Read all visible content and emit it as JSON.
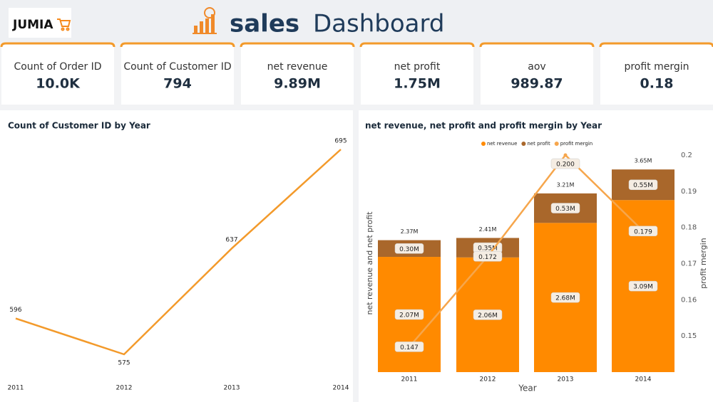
{
  "header": {
    "logo": "JUMIA",
    "title_bold": "sales",
    "title_rest": "Dashboard"
  },
  "kpis": [
    {
      "label": "Count of Order ID",
      "value": "10.0K"
    },
    {
      "label": "Count of Customer ID",
      "value": "794"
    },
    {
      "label": "net revenue",
      "value": "9.89M"
    },
    {
      "label": "net profit",
      "value": "1.75M"
    },
    {
      "label": "aov",
      "value": "989.87"
    },
    {
      "label": "profit mergin",
      "value": "0.18"
    }
  ],
  "chart_data": [
    {
      "type": "line",
      "title": "Count of Customer ID by Year",
      "categories": [
        "2011",
        "2012",
        "2013",
        "2014"
      ],
      "values": [
        596,
        575,
        637,
        695
      ],
      "color": "#f39a2b"
    },
    {
      "type": "combo",
      "title": "net revenue, net profit and profit mergin by Year",
      "categories": [
        "2011",
        "2012",
        "2013",
        "2014"
      ],
      "xlabel": "Year",
      "ylabel": "net revenue and net profit",
      "y2label": "profit mergin",
      "ylim": [
        0,
        4000000
      ],
      "y2lim": [
        0.14,
        0.2
      ],
      "y2ticks": [
        0.15,
        0.16,
        0.17,
        0.18,
        0.19,
        0.2
      ],
      "total_labels": [
        "2.37M",
        "2.41M",
        "3.21M",
        "3.65M"
      ],
      "series": [
        {
          "name": "net revenue",
          "color": "#ff8a00",
          "values": [
            2070000,
            2060000,
            2680000,
            3090000
          ],
          "value_labels": [
            "2.07M",
            "2.06M",
            "2.68M",
            "3.09M"
          ]
        },
        {
          "name": "net profit",
          "color": "#a9672b",
          "values": [
            300000,
            350000,
            530000,
            550000
          ],
          "value_labels": [
            "0.30M",
            "0.35M",
            "0.53M",
            "0.55M"
          ]
        },
        {
          "name": "profit mergin",
          "color": "#f6a64c",
          "axis": "y2",
          "values": [
            0.147,
            0.172,
            0.2,
            0.179
          ],
          "value_labels": [
            "0.147",
            "0.172",
            "0.200",
            "0.179"
          ]
        }
      ]
    }
  ]
}
